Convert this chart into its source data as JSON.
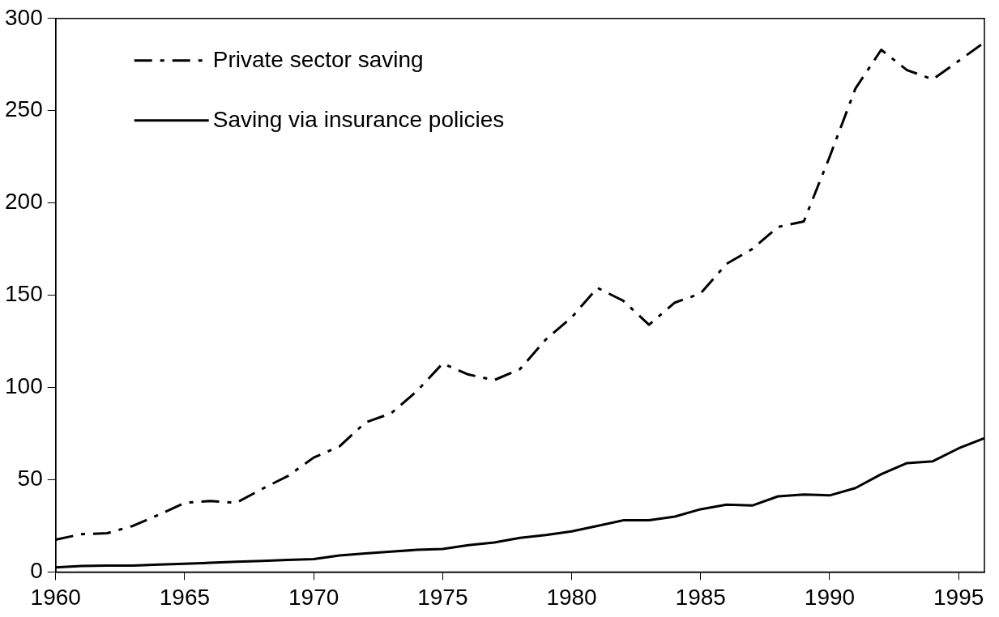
{
  "chart_data": {
    "type": "line",
    "x": [
      1960,
      1961,
      1962,
      1963,
      1964,
      1965,
      1966,
      1967,
      1968,
      1969,
      1970,
      1971,
      1972,
      1973,
      1974,
      1975,
      1976,
      1977,
      1978,
      1979,
      1980,
      1981,
      1982,
      1983,
      1984,
      1985,
      1986,
      1987,
      1988,
      1989,
      1990,
      1991,
      1992,
      1993,
      1994,
      1995,
      1996
    ],
    "series": [
      {
        "name": "Private sector saving",
        "color": "#000000",
        "line_style": "dashed",
        "values": [
          17.5,
          20.5,
          21,
          25,
          31,
          37.5,
          38.5,
          37.5,
          45,
          52,
          62,
          68,
          81,
          86,
          98,
          113,
          107,
          104,
          110,
          126,
          138,
          154,
          147,
          134,
          146,
          151,
          167,
          175,
          187,
          190,
          225,
          262,
          283,
          272,
          267,
          277,
          287
        ]
      },
      {
        "name": "Saving via insurance policies",
        "color": "#000000",
        "line_style": "solid",
        "values": [
          2.5,
          3.2,
          3.5,
          3.5,
          4,
          4.5,
          5,
          5.5,
          6,
          6.5,
          7,
          9,
          10,
          11,
          12,
          12.5,
          14.5,
          16,
          18.5,
          20,
          22,
          25,
          28,
          28,
          30,
          34,
          36.5,
          36,
          41,
          42,
          41.5,
          45.5,
          53,
          59,
          60,
          67,
          72.5
        ]
      }
    ],
    "xlim": [
      1960,
      1996
    ],
    "xticks": [
      1960,
      1965,
      1970,
      1975,
      1980,
      1985,
      1990,
      1995
    ],
    "ylim": [
      0,
      300
    ],
    "yticks": [
      0,
      50,
      100,
      150,
      200,
      250,
      300
    ],
    "grid": false,
    "legend": "top left",
    "marker": "none"
  }
}
